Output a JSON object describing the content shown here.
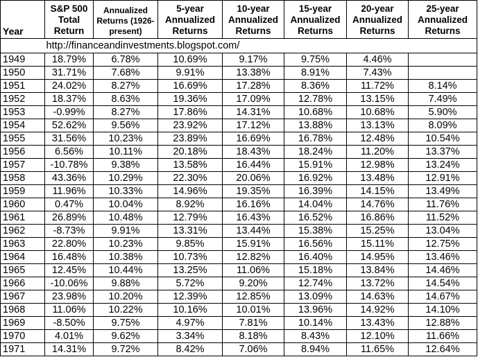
{
  "headers": {
    "year": [
      "Year"
    ],
    "total": [
      "S&P 500",
      "Total",
      "Return"
    ],
    "annualized": [
      "Annualized",
      "Returns (1926-",
      "present)"
    ],
    "y5": [
      "5-year",
      "Annualized",
      "Returns"
    ],
    "y10": [
      "10-year",
      "Annualized",
      "Returns"
    ],
    "y15": [
      "15-year",
      "Annualized",
      "Returns"
    ],
    "y20": [
      "20-year",
      "Annualized",
      "Returns"
    ],
    "y25": [
      "25-year",
      "Annualized",
      "Returns"
    ]
  },
  "source_url": "http://financeandinvestments.blogspot.com/",
  "rows": [
    [
      "1949",
      "18.79%",
      "6.78%",
      "10.69%",
      "9.17%",
      "9.75%",
      "4.46%",
      ""
    ],
    [
      "1950",
      "31.71%",
      "7.68%",
      "9.91%",
      "13.38%",
      "8.91%",
      "7.43%",
      ""
    ],
    [
      "1951",
      "24.02%",
      "8.27%",
      "16.69%",
      "17.28%",
      "8.36%",
      "11.72%",
      "8.14%"
    ],
    [
      "1952",
      "18.37%",
      "8.63%",
      "19.36%",
      "17.09%",
      "12.78%",
      "13.15%",
      "7.49%"
    ],
    [
      "1953",
      "-0.99%",
      "8.27%",
      "17.86%",
      "14.31%",
      "10.68%",
      "10.68%",
      "5.90%"
    ],
    [
      "1954",
      "52.62%",
      "9.56%",
      "23.92%",
      "17.12%",
      "13.88%",
      "13.13%",
      "8.09%"
    ],
    [
      "1955",
      "31.56%",
      "10.23%",
      "23.89%",
      "16.69%",
      "16.78%",
      "12.48%",
      "10.54%"
    ],
    [
      "1956",
      "6.56%",
      "10.11%",
      "20.18%",
      "18.43%",
      "18.24%",
      "11.20%",
      "13.37%"
    ],
    [
      "1957",
      "-10.78%",
      "9.38%",
      "13.58%",
      "16.44%",
      "15.91%",
      "12.98%",
      "13.24%"
    ],
    [
      "1958",
      "43.36%",
      "10.29%",
      "22.30%",
      "20.06%",
      "16.92%",
      "13.48%",
      "12.91%"
    ],
    [
      "1959",
      "11.96%",
      "10.33%",
      "14.96%",
      "19.35%",
      "16.39%",
      "14.15%",
      "13.49%"
    ],
    [
      "1960",
      "0.47%",
      "10.04%",
      "8.92%",
      "16.16%",
      "14.04%",
      "14.76%",
      "11.76%"
    ],
    [
      "1961",
      "26.89%",
      "10.48%",
      "12.79%",
      "16.43%",
      "16.52%",
      "16.86%",
      "11.52%"
    ],
    [
      "1962",
      "-8.73%",
      "9.91%",
      "13.31%",
      "13.44%",
      "15.38%",
      "15.25%",
      "13.04%"
    ],
    [
      "1963",
      "22.80%",
      "10.23%",
      "9.85%",
      "15.91%",
      "16.56%",
      "15.11%",
      "12.75%"
    ],
    [
      "1964",
      "16.48%",
      "10.38%",
      "10.73%",
      "12.82%",
      "16.40%",
      "14.95%",
      "13.46%"
    ],
    [
      "1965",
      "12.45%",
      "10.44%",
      "13.25%",
      "11.06%",
      "15.18%",
      "13.84%",
      "14.46%"
    ],
    [
      "1966",
      "-10.06%",
      "9.88%",
      "5.72%",
      "9.20%",
      "12.74%",
      "13.72%",
      "14.54%"
    ],
    [
      "1967",
      "23.98%",
      "10.20%",
      "12.39%",
      "12.85%",
      "13.09%",
      "14.63%",
      "14.67%"
    ],
    [
      "1968",
      "11.06%",
      "10.22%",
      "10.16%",
      "10.01%",
      "13.96%",
      "14.92%",
      "14.10%"
    ],
    [
      "1969",
      "-8.50%",
      "9.75%",
      "4.97%",
      "7.81%",
      "10.14%",
      "13.43%",
      "12.88%"
    ],
    [
      "1970",
      "4.01%",
      "9.62%",
      "3.34%",
      "8.18%",
      "8.43%",
      "12.10%",
      "11.66%"
    ],
    [
      "1971",
      "14.31%",
      "9.72%",
      "8.42%",
      "7.06%",
      "8.94%",
      "11.65%",
      "12.64%"
    ]
  ]
}
